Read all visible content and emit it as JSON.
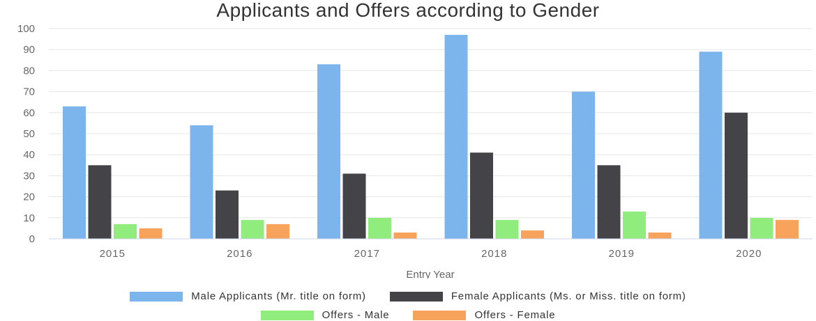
{
  "chart_data": {
    "type": "bar",
    "title": "Applicants and Offers according to Gender",
    "xlabel": "Entry Year",
    "ylabel": "",
    "categories": [
      "2015",
      "2016",
      "2017",
      "2018",
      "2019",
      "2020"
    ],
    "ylim": [
      0,
      100
    ],
    "yticks": [
      0,
      10,
      20,
      30,
      40,
      50,
      60,
      70,
      80,
      90,
      100
    ],
    "grid": true,
    "legend_position": "bottom",
    "series": [
      {
        "name": "Male Applicants (Mr. title on form)",
        "color": "#7cb5ec",
        "values": [
          63,
          54,
          83,
          97,
          70,
          89
        ]
      },
      {
        "name": "Female Applicants (Ms. or Miss. title on form)",
        "color": "#434348",
        "values": [
          35,
          23,
          31,
          41,
          35,
          60
        ]
      },
      {
        "name": "Offers - Male",
        "color": "#90ed7d",
        "values": [
          7,
          9,
          10,
          9,
          13,
          10
        ]
      },
      {
        "name": "Offers - Female",
        "color": "#f7a35c",
        "values": [
          5,
          7,
          3,
          4,
          3,
          9
        ]
      }
    ]
  }
}
